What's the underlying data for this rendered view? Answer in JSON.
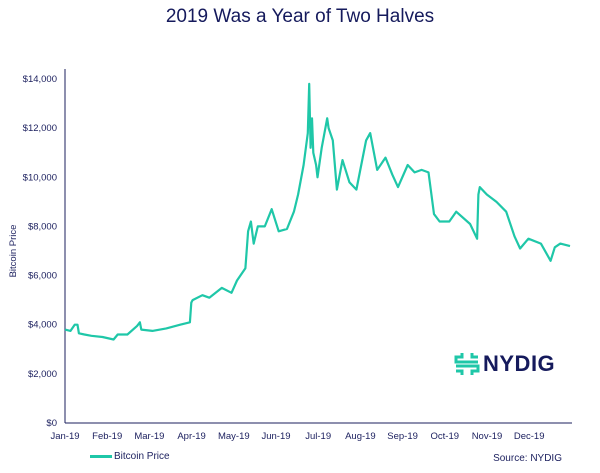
{
  "chart_data": {
    "type": "line",
    "title": "2019 Was a Year of Two Halves",
    "ylabel": "Bitcoin Price",
    "xlabel": "",
    "ylim": [
      0,
      14000
    ],
    "yticks": [
      "$0",
      "$2,000",
      "$4,000",
      "$6,000",
      "$8,000",
      "$10,000",
      "$12,000",
      "$14,000"
    ],
    "ytick_values": [
      0,
      2000,
      4000,
      6000,
      8000,
      10000,
      12000,
      14000
    ],
    "xticks": [
      "Jan-19",
      "Feb-19",
      "Mar-19",
      "Apr-19",
      "May-19",
      "Jun-19",
      "Jul-19",
      "Aug-19",
      "Sep-19",
      "Oct-19",
      "Nov-19",
      "Dec-19"
    ],
    "grid": false,
    "legend_placement": "bottom-left",
    "series": [
      {
        "name": "Bitcoin Price",
        "color": "#1fc7a8",
        "points": [
          [
            "2019-01-01",
            3800
          ],
          [
            "2019-01-05",
            3750
          ],
          [
            "2019-01-08",
            4000
          ],
          [
            "2019-01-10",
            4000
          ],
          [
            "2019-01-11",
            3650
          ],
          [
            "2019-01-15",
            3600
          ],
          [
            "2019-01-20",
            3550
          ],
          [
            "2019-01-28",
            3500
          ],
          [
            "2019-02-05",
            3400
          ],
          [
            "2019-02-08",
            3600
          ],
          [
            "2019-02-15",
            3600
          ],
          [
            "2019-02-22",
            3950
          ],
          [
            "2019-02-24",
            4100
          ],
          [
            "2019-02-25",
            3800
          ],
          [
            "2019-03-05",
            3750
          ],
          [
            "2019-03-15",
            3850
          ],
          [
            "2019-03-25",
            4000
          ],
          [
            "2019-04-01",
            4100
          ],
          [
            "2019-04-02",
            4900
          ],
          [
            "2019-04-03",
            5000
          ],
          [
            "2019-04-10",
            5200
          ],
          [
            "2019-04-15",
            5100
          ],
          [
            "2019-04-24",
            5500
          ],
          [
            "2019-05-01",
            5300
          ],
          [
            "2019-05-05",
            5800
          ],
          [
            "2019-05-11",
            6300
          ],
          [
            "2019-05-13",
            7800
          ],
          [
            "2019-05-15",
            8200
          ],
          [
            "2019-05-17",
            7300
          ],
          [
            "2019-05-20",
            8000
          ],
          [
            "2019-05-25",
            8000
          ],
          [
            "2019-05-30",
            8700
          ],
          [
            "2019-06-04",
            7800
          ],
          [
            "2019-06-10",
            7900
          ],
          [
            "2019-06-15",
            8600
          ],
          [
            "2019-06-18",
            9300
          ],
          [
            "2019-06-22",
            10500
          ],
          [
            "2019-06-25",
            11800
          ],
          [
            "2019-06-26",
            13800
          ],
          [
            "2019-06-27",
            11200
          ],
          [
            "2019-06-28",
            12400
          ],
          [
            "2019-06-29",
            11000
          ],
          [
            "2019-07-01",
            10500
          ],
          [
            "2019-07-02",
            10000
          ],
          [
            "2019-07-05",
            11200
          ],
          [
            "2019-07-09",
            12400
          ],
          [
            "2019-07-10",
            12000
          ],
          [
            "2019-07-13",
            11500
          ],
          [
            "2019-07-16",
            9500
          ],
          [
            "2019-07-17",
            9800
          ],
          [
            "2019-07-20",
            10700
          ],
          [
            "2019-07-25",
            9800
          ],
          [
            "2019-07-30",
            9500
          ],
          [
            "2019-08-06",
            11500
          ],
          [
            "2019-08-09",
            11800
          ],
          [
            "2019-08-14",
            10300
          ],
          [
            "2019-08-20",
            10800
          ],
          [
            "2019-08-25",
            10100
          ],
          [
            "2019-08-29",
            9600
          ],
          [
            "2019-09-05",
            10500
          ],
          [
            "2019-09-10",
            10200
          ],
          [
            "2019-09-15",
            10300
          ],
          [
            "2019-09-20",
            10200
          ],
          [
            "2019-09-24",
            8500
          ],
          [
            "2019-09-28",
            8200
          ],
          [
            "2019-10-05",
            8200
          ],
          [
            "2019-10-10",
            8600
          ],
          [
            "2019-10-20",
            8100
          ],
          [
            "2019-10-25",
            7500
          ],
          [
            "2019-10-26",
            9300
          ],
          [
            "2019-10-27",
            9600
          ],
          [
            "2019-11-01",
            9300
          ],
          [
            "2019-11-08",
            9000
          ],
          [
            "2019-11-15",
            8600
          ],
          [
            "2019-11-21",
            7600
          ],
          [
            "2019-11-25",
            7100
          ],
          [
            "2019-12-01",
            7500
          ],
          [
            "2019-12-10",
            7300
          ],
          [
            "2019-12-17",
            6600
          ],
          [
            "2019-12-20",
            7150
          ],
          [
            "2019-12-24",
            7300
          ],
          [
            "2019-12-31",
            7200
          ]
        ]
      }
    ]
  },
  "legend": {
    "label": "Bitcoin Price"
  },
  "source": "Source: NYDIG",
  "logo": {
    "text": "NYDIG",
    "color": "#1fc7a8"
  }
}
